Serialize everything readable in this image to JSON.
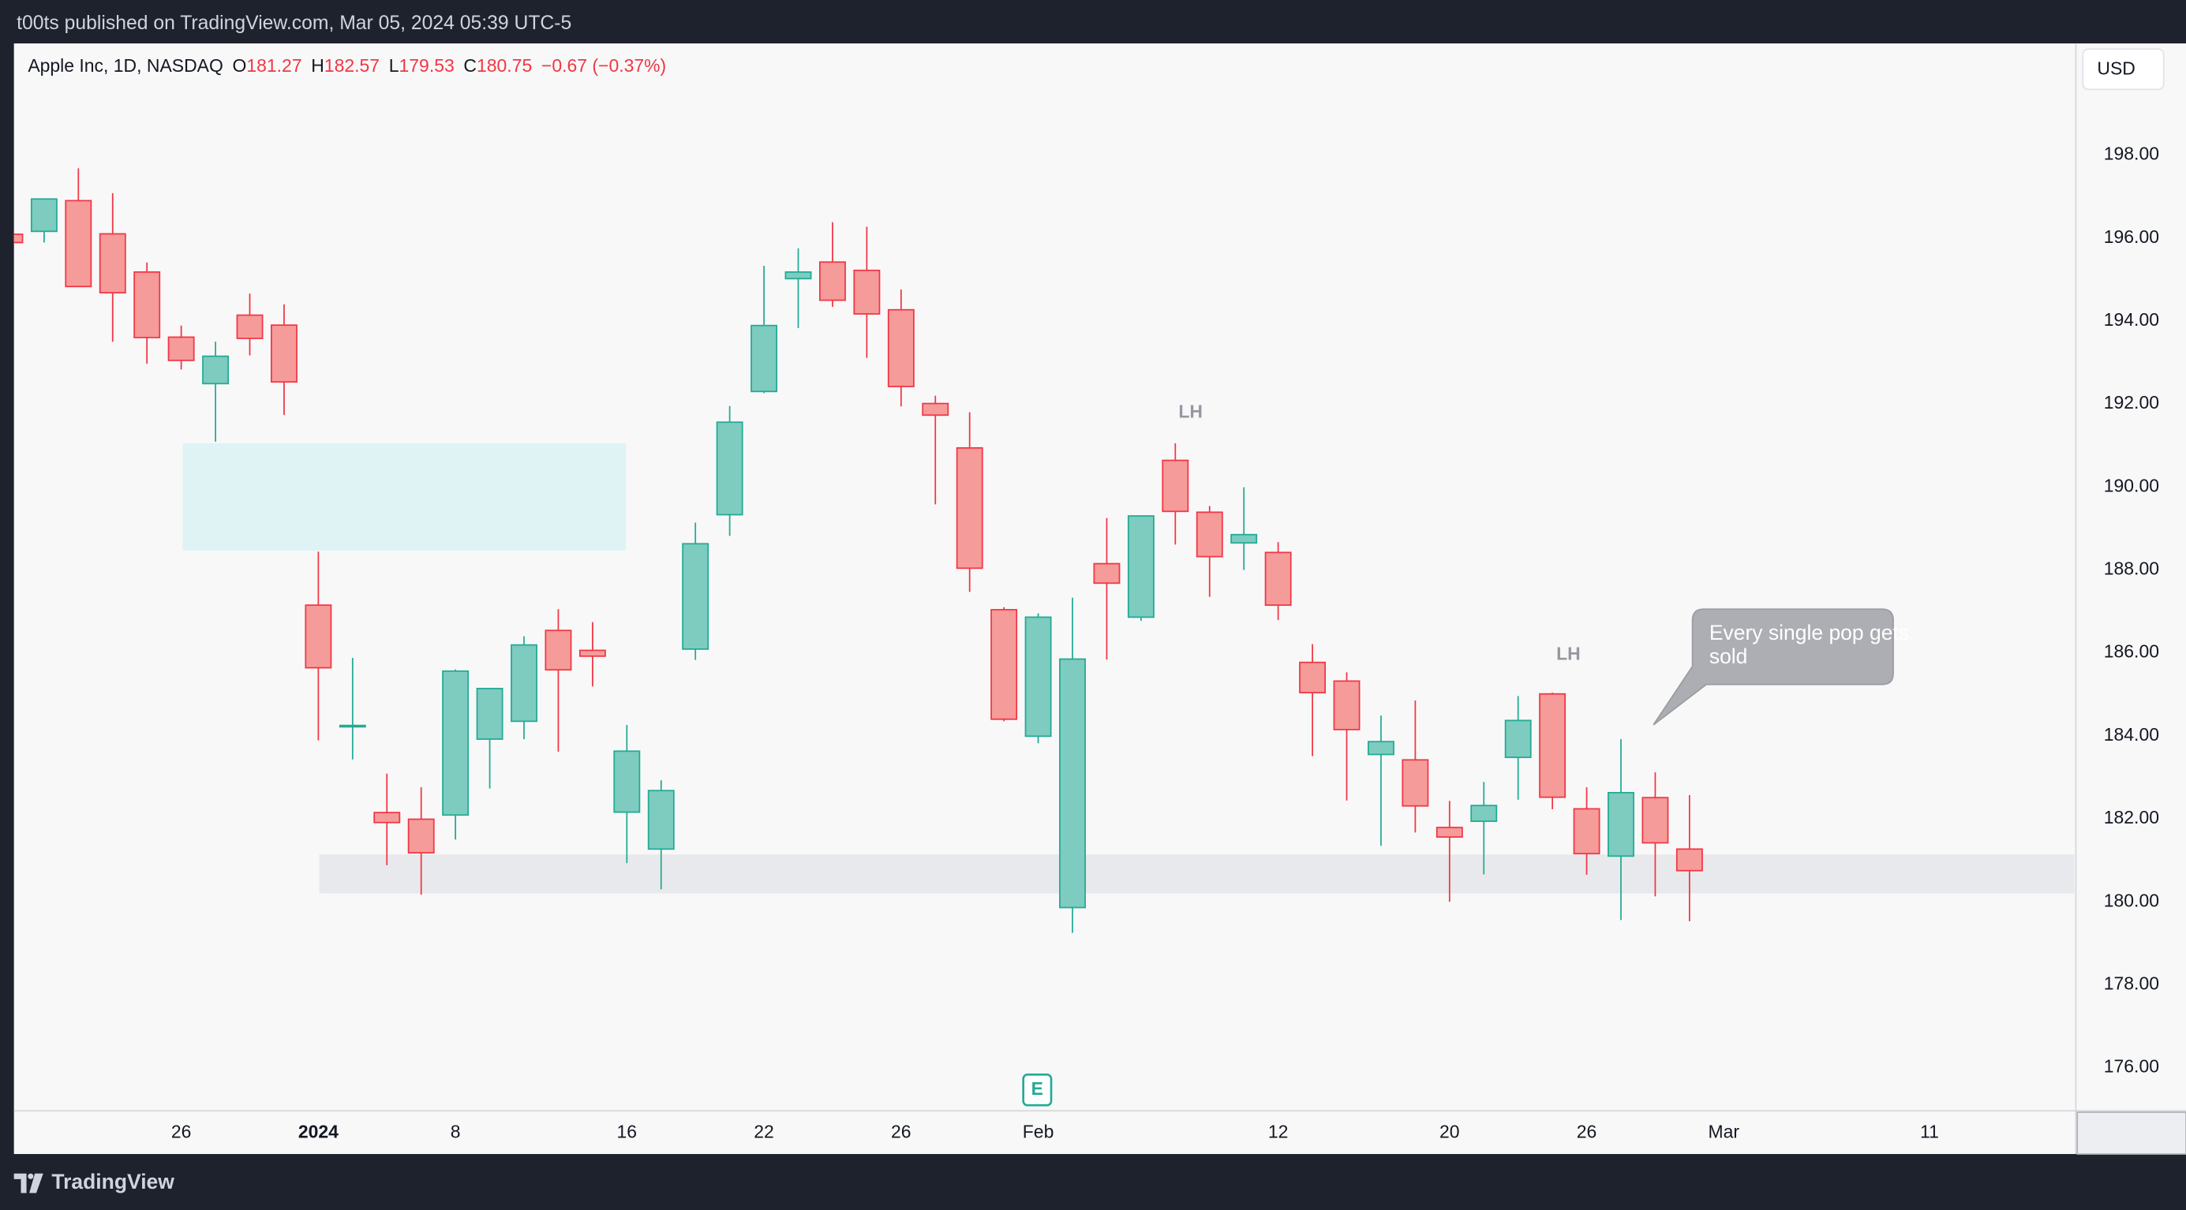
{
  "header": {
    "published": "t00ts published on TradingView.com, Mar 05, 2024 05:39 UTC-5",
    "currency": "USD"
  },
  "footer": {
    "brand": "TradingView"
  },
  "chart_data": {
    "type": "candlestick",
    "legend": {
      "name": "Apple Inc, 1D, NASDAQ",
      "labels": [
        "O",
        "H",
        "L",
        "C"
      ],
      "change": "−0.67 (−0.37%)"
    },
    "up_color": "#22ab94",
    "up_fill": "#7ecbbf",
    "down_color": "#f23645",
    "down_fill": "#f59c9a",
    "annotations": [
      "LH",
      "LH",
      "Every single pop gets sold"
    ],
    "earnings_marker": "E",
    "grid": false,
    "candles": [
      {
        "open": 196.09,
        "high": 196.63,
        "low": 194.39,
        "close": 195.89
      },
      {
        "open": 196.16,
        "high": 196.95,
        "low": 195.89,
        "close": 196.94
      },
      {
        "open": 196.9,
        "high": 197.68,
        "low": 194.83,
        "close": 194.83
      },
      {
        "open": 196.1,
        "high": 197.08,
        "low": 193.5,
        "close": 194.68
      },
      {
        "open": 195.18,
        "high": 195.41,
        "low": 192.97,
        "close": 193.6
      },
      {
        "open": 193.61,
        "high": 193.89,
        "low": 192.83,
        "close": 193.05
      },
      {
        "open": 192.49,
        "high": 193.5,
        "low": 191.09,
        "close": 193.15
      },
      {
        "open": 194.14,
        "high": 194.66,
        "low": 193.17,
        "close": 193.58
      },
      {
        "open": 193.9,
        "high": 194.4,
        "low": 191.73,
        "close": 192.53
      },
      {
        "open": 187.15,
        "high": 188.44,
        "low": 183.89,
        "close": 185.64
      },
      {
        "open": 184.22,
        "high": 185.88,
        "low": 183.43,
        "close": 184.25
      },
      {
        "open": 182.15,
        "high": 183.09,
        "low": 180.88,
        "close": 181.91
      },
      {
        "open": 181.99,
        "high": 182.76,
        "low": 180.17,
        "close": 181.18
      },
      {
        "open": 182.09,
        "high": 185.6,
        "low": 181.5,
        "close": 185.56
      },
      {
        "open": 183.92,
        "high": 185.15,
        "low": 182.73,
        "close": 185.14
      },
      {
        "open": 184.35,
        "high": 186.4,
        "low": 183.92,
        "close": 186.19
      },
      {
        "open": 186.54,
        "high": 187.05,
        "low": 183.62,
        "close": 185.59
      },
      {
        "open": 186.06,
        "high": 186.74,
        "low": 185.19,
        "close": 185.92
      },
      {
        "open": 182.16,
        "high": 184.26,
        "low": 180.93,
        "close": 183.63
      },
      {
        "open": 181.27,
        "high": 182.93,
        "low": 180.3,
        "close": 182.68
      },
      {
        "open": 186.09,
        "high": 189.14,
        "low": 185.83,
        "close": 188.63
      },
      {
        "open": 189.33,
        "high": 191.95,
        "low": 188.82,
        "close": 191.56
      },
      {
        "open": 192.3,
        "high": 195.33,
        "low": 192.26,
        "close": 193.89
      },
      {
        "open": 195.02,
        "high": 195.75,
        "low": 193.83,
        "close": 195.18
      },
      {
        "open": 195.42,
        "high": 196.38,
        "low": 194.34,
        "close": 194.5
      },
      {
        "open": 195.22,
        "high": 196.27,
        "low": 193.11,
        "close": 194.17
      },
      {
        "open": 194.27,
        "high": 194.76,
        "low": 191.94,
        "close": 192.42
      },
      {
        "open": 192.01,
        "high": 192.2,
        "low": 189.58,
        "close": 191.73
      },
      {
        "open": 190.94,
        "high": 191.8,
        "low": 187.47,
        "close": 188.04
      },
      {
        "open": 187.04,
        "high": 187.1,
        "low": 184.35,
        "close": 184.4
      },
      {
        "open": 183.99,
        "high": 186.95,
        "low": 183.82,
        "close": 186.86
      },
      {
        "open": 179.86,
        "high": 187.33,
        "low": 179.25,
        "close": 185.85
      },
      {
        "open": 188.15,
        "high": 189.25,
        "low": 185.84,
        "close": 187.68
      },
      {
        "open": 186.86,
        "high": 189.31,
        "low": 186.77,
        "close": 189.3
      },
      {
        "open": 190.64,
        "high": 191.05,
        "low": 188.61,
        "close": 189.41
      },
      {
        "open": 189.39,
        "high": 189.54,
        "low": 187.35,
        "close": 188.32
      },
      {
        "open": 188.65,
        "high": 189.99,
        "low": 188.0,
        "close": 188.85
      },
      {
        "open": 188.42,
        "high": 188.67,
        "low": 186.79,
        "close": 187.15
      },
      {
        "open": 185.77,
        "high": 186.21,
        "low": 183.51,
        "close": 185.04
      },
      {
        "open": 185.32,
        "high": 185.53,
        "low": 182.44,
        "close": 184.15
      },
      {
        "open": 183.55,
        "high": 184.49,
        "low": 181.35,
        "close": 183.86
      },
      {
        "open": 183.42,
        "high": 184.85,
        "low": 181.67,
        "close": 182.31
      },
      {
        "open": 181.79,
        "high": 182.43,
        "low": 180.0,
        "close": 181.56
      },
      {
        "open": 181.94,
        "high": 182.89,
        "low": 180.66,
        "close": 182.32
      },
      {
        "open": 183.48,
        "high": 184.96,
        "low": 182.46,
        "close": 184.37
      },
      {
        "open": 185.01,
        "high": 185.04,
        "low": 182.23,
        "close": 182.52
      },
      {
        "open": 182.24,
        "high": 182.76,
        "low": 180.65,
        "close": 181.16
      },
      {
        "open": 181.1,
        "high": 183.92,
        "low": 179.56,
        "close": 182.63
      },
      {
        "open": 182.51,
        "high": 183.12,
        "low": 180.13,
        "close": 181.42
      },
      {
        "open": 181.27,
        "high": 182.57,
        "low": 179.53,
        "close": 180.75
      }
    ],
    "xlim": [
      0.12,
      60.23
    ],
    "xticks": [
      {
        "value": 5,
        "label": "26"
      },
      {
        "value": 9,
        "label": "2024"
      },
      {
        "value": 13,
        "label": "8"
      },
      {
        "value": 18,
        "label": "16"
      },
      {
        "value": 22,
        "label": "22"
      },
      {
        "value": 26,
        "label": "26"
      },
      {
        "value": 30,
        "label": "Feb"
      },
      {
        "value": 37,
        "label": "12"
      },
      {
        "value": 42,
        "label": "20"
      },
      {
        "value": 46,
        "label": "26"
      },
      {
        "value": 50,
        "label": "Mar"
      },
      {
        "value": 56,
        "label": "11"
      }
    ],
    "ylim": [
      174.96,
      200.69
    ],
    "yticks": [
      {
        "value": 176,
        "label": "176.00"
      },
      {
        "value": 178,
        "label": "178.00"
      },
      {
        "value": 180,
        "label": "180.00"
      },
      {
        "value": 182,
        "label": "182.00"
      },
      {
        "value": 184,
        "label": "184.00"
      },
      {
        "value": 186,
        "label": "186.00"
      },
      {
        "value": 188,
        "label": "188.00"
      },
      {
        "value": 190,
        "label": "190.00"
      },
      {
        "value": 192,
        "label": "192.00"
      },
      {
        "value": 194,
        "label": "194.00"
      },
      {
        "value": 196,
        "label": "196.00"
      },
      {
        "value": 198,
        "label": "198.00"
      }
    ]
  }
}
